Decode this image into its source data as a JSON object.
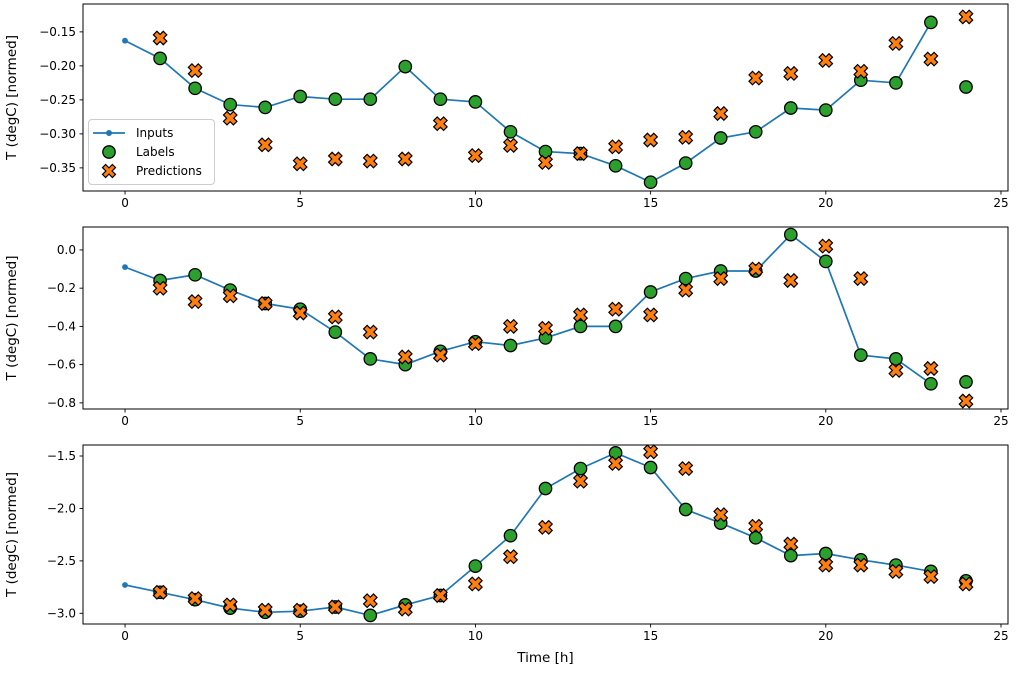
{
  "figure": {
    "background_color": "#ffffff",
    "xlabel": "Time [h]",
    "legend": {
      "position": "left-middle-of-first-subplot",
      "items": [
        {
          "label": "Inputs",
          "marker": "line-with-dot",
          "color": "#1f77b4"
        },
        {
          "label": "Labels",
          "marker": "circle",
          "color": "#2ca02c",
          "edge_color": "#000000"
        },
        {
          "label": "Predictions",
          "marker": "X",
          "color": "#ff7f0e",
          "edge_color": "#000000"
        }
      ]
    }
  },
  "chart_data": [
    {
      "type": "line",
      "subtype": "line-plus-scatter",
      "ylabel": "T (degC) [normed]",
      "xlim": [
        -1.2,
        25.2
      ],
      "ylim": [
        -0.384,
        -0.109
      ],
      "xticks": [
        0,
        5,
        10,
        15,
        20,
        25
      ],
      "xticklabels": [
        "0",
        "5",
        "10",
        "15",
        "20",
        "25"
      ],
      "yticks": [
        -0.15,
        -0.2,
        -0.25,
        -0.3,
        -0.35
      ],
      "yticklabels": [
        "−0.15",
        "−0.20",
        "−0.25",
        "−0.30",
        "−0.35"
      ],
      "grid": false,
      "legend_visible": true,
      "series": [
        {
          "name": "Inputs",
          "type": "line",
          "marker": "dot",
          "color": "#1f77b4",
          "x": [
            0,
            1,
            2,
            3,
            4,
            5,
            6,
            7,
            8,
            9,
            10,
            11,
            12,
            13,
            14,
            15,
            16,
            17,
            18,
            19,
            20,
            21,
            22,
            23
          ],
          "y": [
            -0.163,
            -0.189,
            -0.233,
            -0.257,
            -0.261,
            -0.245,
            -0.249,
            -0.249,
            -0.201,
            -0.249,
            -0.253,
            -0.297,
            -0.326,
            -0.329,
            -0.347,
            -0.371,
            -0.343,
            -0.306,
            -0.297,
            -0.262,
            -0.265,
            -0.221,
            -0.225,
            -0.136
          ]
        },
        {
          "name": "Labels",
          "type": "scatter",
          "marker": "circle",
          "color": "#2ca02c",
          "x": [
            1,
            2,
            3,
            4,
            5,
            6,
            7,
            8,
            9,
            10,
            11,
            12,
            13,
            14,
            15,
            16,
            17,
            18,
            19,
            20,
            21,
            22,
            23,
            24
          ],
          "y": [
            -0.189,
            -0.233,
            -0.257,
            -0.261,
            -0.245,
            -0.249,
            -0.249,
            -0.201,
            -0.249,
            -0.253,
            -0.297,
            -0.326,
            -0.329,
            -0.347,
            -0.371,
            -0.343,
            -0.306,
            -0.297,
            -0.262,
            -0.265,
            -0.221,
            -0.225,
            -0.136,
            -0.231
          ]
        },
        {
          "name": "Predictions",
          "type": "scatter",
          "marker": "X",
          "color": "#ff7f0e",
          "x": [
            1,
            2,
            3,
            4,
            5,
            6,
            7,
            8,
            9,
            10,
            11,
            12,
            13,
            14,
            15,
            16,
            17,
            18,
            19,
            20,
            21,
            22,
            23,
            24
          ],
          "y": [
            -0.159,
            -0.207,
            -0.277,
            -0.316,
            -0.344,
            -0.337,
            -0.34,
            -0.337,
            -0.285,
            -0.332,
            -0.317,
            -0.342,
            -0.329,
            -0.319,
            -0.309,
            -0.305,
            -0.27,
            -0.218,
            -0.211,
            -0.192,
            -0.208,
            -0.167,
            -0.19,
            -0.128
          ]
        }
      ]
    },
    {
      "type": "line",
      "subtype": "line-plus-scatter",
      "ylabel": "T (degC) [normed]",
      "xlim": [
        -1.2,
        25.2
      ],
      "ylim": [
        -0.832,
        0.12
      ],
      "xticks": [
        0,
        5,
        10,
        15,
        20,
        25
      ],
      "xticklabels": [
        "0",
        "5",
        "10",
        "15",
        "20",
        "25"
      ],
      "yticks": [
        0.0,
        -0.2,
        -0.4,
        -0.6,
        -0.8
      ],
      "yticklabels": [
        "0.0",
        "−0.2",
        "−0.4",
        "−0.6",
        "−0.8"
      ],
      "grid": false,
      "legend_visible": false,
      "series": [
        {
          "name": "Inputs",
          "type": "line",
          "marker": "dot",
          "color": "#1f77b4",
          "x": [
            0,
            1,
            2,
            3,
            4,
            5,
            6,
            7,
            8,
            9,
            10,
            11,
            12,
            13,
            14,
            15,
            16,
            17,
            18,
            19,
            20,
            21,
            22,
            23
          ],
          "y": [
            -0.09,
            -0.16,
            -0.13,
            -0.21,
            -0.28,
            -0.31,
            -0.43,
            -0.57,
            -0.6,
            -0.53,
            -0.48,
            -0.5,
            -0.46,
            -0.4,
            -0.4,
            -0.22,
            -0.15,
            -0.11,
            -0.11,
            0.08,
            -0.06,
            -0.55,
            -0.57,
            -0.7
          ]
        },
        {
          "name": "Labels",
          "type": "scatter",
          "marker": "circle",
          "color": "#2ca02c",
          "x": [
            1,
            2,
            3,
            4,
            5,
            6,
            7,
            8,
            9,
            10,
            11,
            12,
            13,
            14,
            15,
            16,
            17,
            18,
            19,
            20,
            21,
            22,
            23,
            24
          ],
          "y": [
            -0.16,
            -0.13,
            -0.21,
            -0.28,
            -0.31,
            -0.43,
            -0.57,
            -0.6,
            -0.53,
            -0.48,
            -0.5,
            -0.46,
            -0.4,
            -0.4,
            -0.22,
            -0.15,
            -0.11,
            -0.11,
            0.08,
            -0.06,
            -0.55,
            -0.57,
            -0.7,
            -0.69
          ]
        },
        {
          "name": "Predictions",
          "type": "scatter",
          "marker": "X",
          "color": "#ff7f0e",
          "x": [
            1,
            2,
            3,
            4,
            5,
            6,
            7,
            8,
            9,
            10,
            11,
            12,
            13,
            14,
            15,
            16,
            17,
            18,
            19,
            20,
            21,
            22,
            23,
            24
          ],
          "y": [
            -0.2,
            -0.27,
            -0.24,
            -0.28,
            -0.33,
            -0.35,
            -0.43,
            -0.56,
            -0.55,
            -0.49,
            -0.4,
            -0.41,
            -0.34,
            -0.31,
            -0.34,
            -0.21,
            -0.15,
            -0.1,
            -0.16,
            0.02,
            -0.15,
            -0.63,
            -0.62,
            -0.79
          ]
        }
      ]
    },
    {
      "type": "line",
      "subtype": "line-plus-scatter",
      "ylabel": "T (degC) [normed]",
      "xlabel": "Time [h]",
      "xlim": [
        -1.2,
        25.2
      ],
      "ylim": [
        -3.102,
        -1.395
      ],
      "xticks": [
        0,
        5,
        10,
        15,
        20,
        25
      ],
      "xticklabels": [
        "0",
        "5",
        "10",
        "15",
        "20",
        "25"
      ],
      "yticks": [
        -1.5,
        -2.0,
        -2.5,
        -3.0
      ],
      "yticklabels": [
        "−1.5",
        "−2.0",
        "−2.5",
        "−3.0"
      ],
      "grid": false,
      "legend_visible": false,
      "series": [
        {
          "name": "Inputs",
          "type": "line",
          "marker": "dot",
          "color": "#1f77b4",
          "x": [
            0,
            1,
            2,
            3,
            4,
            5,
            6,
            7,
            8,
            9,
            10,
            11,
            12,
            13,
            14,
            15,
            16,
            17,
            18,
            19,
            20,
            21,
            22,
            23
          ],
          "y": [
            -2.73,
            -2.8,
            -2.87,
            -2.95,
            -2.99,
            -2.98,
            -2.94,
            -3.02,
            -2.92,
            -2.83,
            -2.55,
            -2.26,
            -1.81,
            -1.62,
            -1.47,
            -1.61,
            -2.01,
            -2.14,
            -2.28,
            -2.45,
            -2.43,
            -2.49,
            -2.54,
            -2.6
          ]
        },
        {
          "name": "Labels",
          "type": "scatter",
          "marker": "circle",
          "color": "#2ca02c",
          "x": [
            1,
            2,
            3,
            4,
            5,
            6,
            7,
            8,
            9,
            10,
            11,
            12,
            13,
            14,
            15,
            16,
            17,
            18,
            19,
            20,
            21,
            22,
            23,
            24
          ],
          "y": [
            -2.8,
            -2.87,
            -2.95,
            -2.99,
            -2.98,
            -2.94,
            -3.02,
            -2.92,
            -2.83,
            -2.55,
            -2.26,
            -1.81,
            -1.62,
            -1.47,
            -1.61,
            -2.01,
            -2.14,
            -2.28,
            -2.45,
            -2.43,
            -2.49,
            -2.54,
            -2.6,
            -2.69
          ]
        },
        {
          "name": "Predictions",
          "type": "scatter",
          "marker": "X",
          "color": "#ff7f0e",
          "x": [
            1,
            2,
            3,
            4,
            5,
            6,
            7,
            8,
            9,
            10,
            11,
            12,
            13,
            14,
            15,
            16,
            17,
            18,
            19,
            20,
            21,
            22,
            23,
            24
          ],
          "y": [
            -2.8,
            -2.86,
            -2.92,
            -2.97,
            -2.97,
            -2.94,
            -2.88,
            -2.96,
            -2.83,
            -2.72,
            -2.46,
            -2.18,
            -1.74,
            -1.57,
            -1.46,
            -1.62,
            -2.06,
            -2.17,
            -2.34,
            -2.54,
            -2.54,
            -2.6,
            -2.65,
            -2.72
          ]
        }
      ]
    }
  ]
}
